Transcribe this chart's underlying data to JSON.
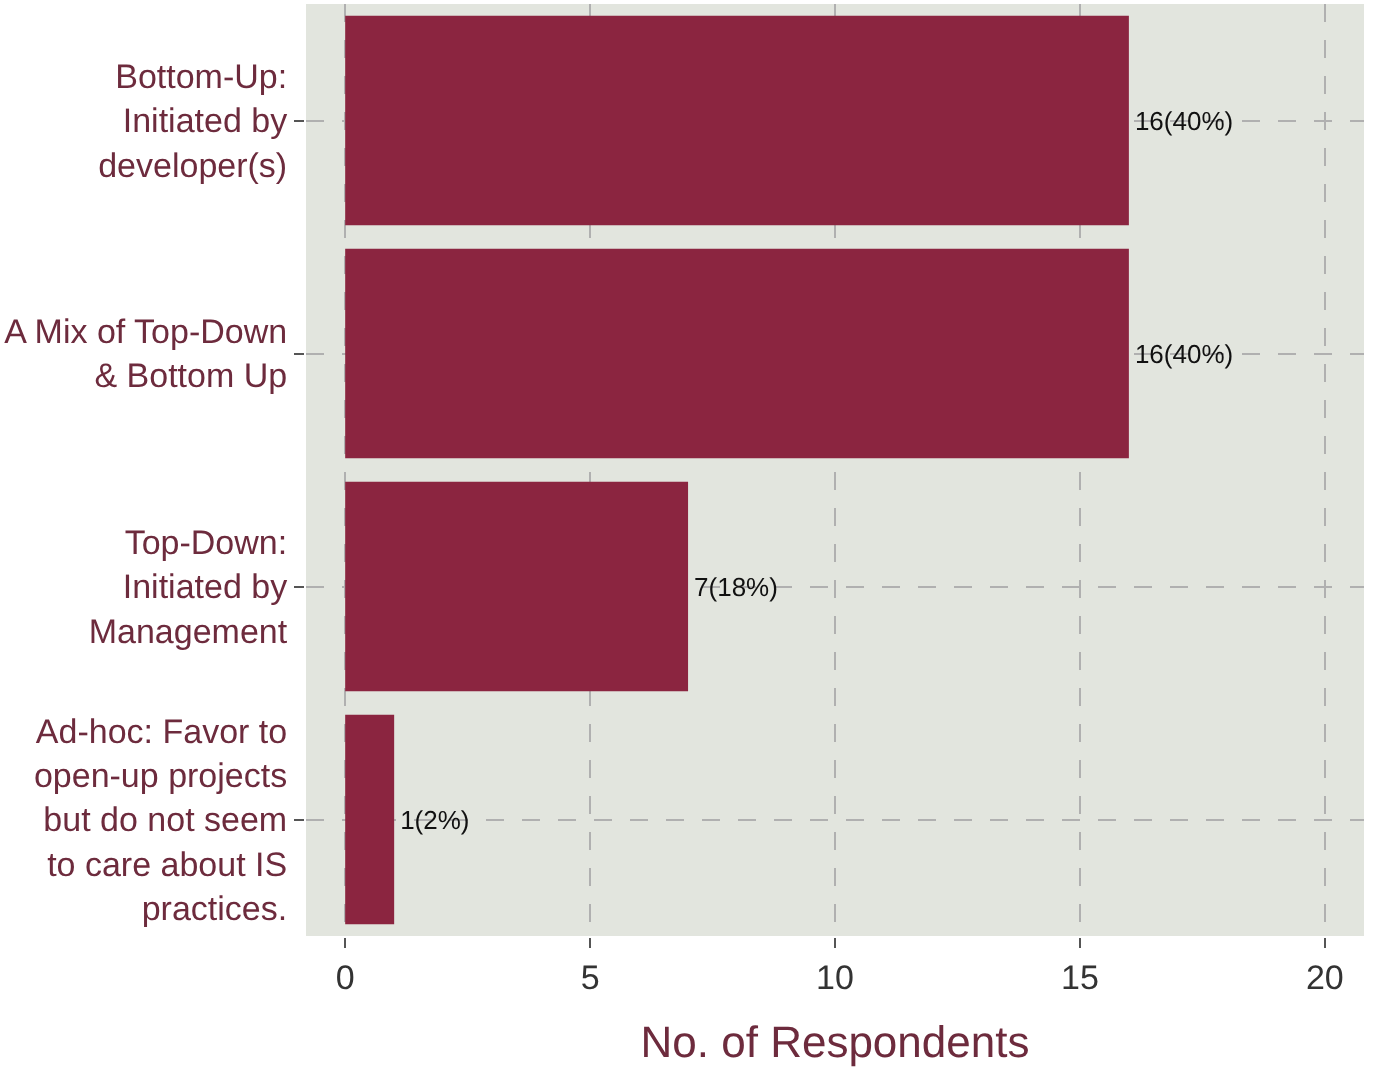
{
  "chart_data": {
    "type": "bar",
    "orientation": "horizontal",
    "xlabel": "No. of Respondents",
    "categories": [
      "Bottom-Up:\nInitiated by\ndeveloper(s)",
      "A Mix of Top-Down\n& Bottom Up",
      "Top-Down:\nInitiated by\nManagement",
      "Ad-hoc: Favor to\nopen-up projects\nbut do not seem\nto care about IS\npractices."
    ],
    "values": [
      16,
      16,
      7,
      1
    ],
    "color": "#8b2540",
    "value_labels": [
      "16(40%)",
      "16(40%)",
      "7(18%)",
      "1(2%)"
    ],
    "xlim": [
      -0.8,
      20.8
    ],
    "xticks": [
      0,
      5,
      10,
      15,
      20
    ],
    "grid": true,
    "legend": false
  }
}
